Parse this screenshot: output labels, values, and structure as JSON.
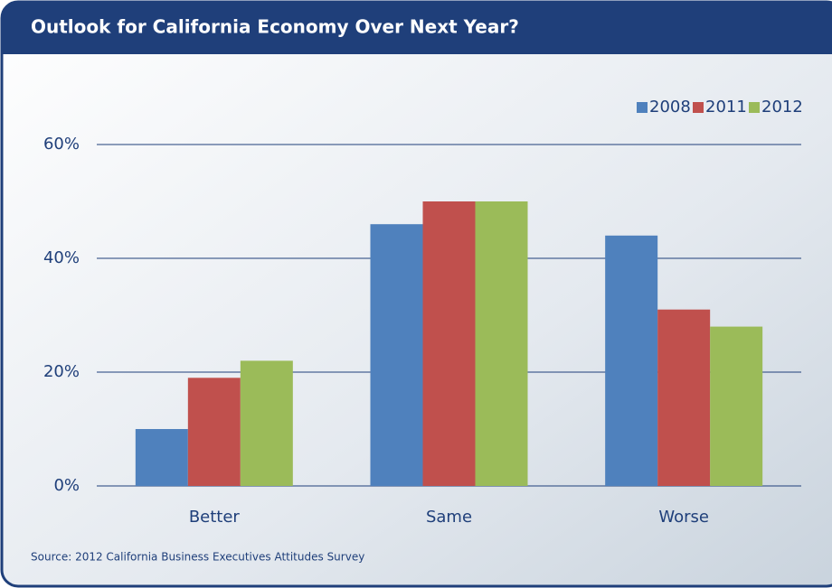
{
  "chart_data": {
    "type": "bar",
    "title": "Outlook for California Economy Over Next Year?",
    "source": "Source: 2012 California Business Executives Attitudes Survey",
    "categories": [
      "Better",
      "Same",
      "Worse"
    ],
    "series": [
      {
        "name": "2008",
        "color": "#4f81bd",
        "values": [
          10,
          46,
          44
        ]
      },
      {
        "name": "2011",
        "color": "#c0504d",
        "values": [
          19,
          50,
          31
        ]
      },
      {
        "name": "2012",
        "color": "#9bbb59",
        "values": [
          22,
          50,
          28
        ]
      }
    ],
    "ylim": [
      0,
      60
    ],
    "yticks": [
      {
        "value": 0,
        "label": "0%"
      },
      {
        "value": 20,
        "label": "20%"
      },
      {
        "value": 40,
        "label": "40%"
      },
      {
        "value": 60,
        "label": "60%"
      }
    ],
    "grid": true,
    "legend": "top-right"
  }
}
